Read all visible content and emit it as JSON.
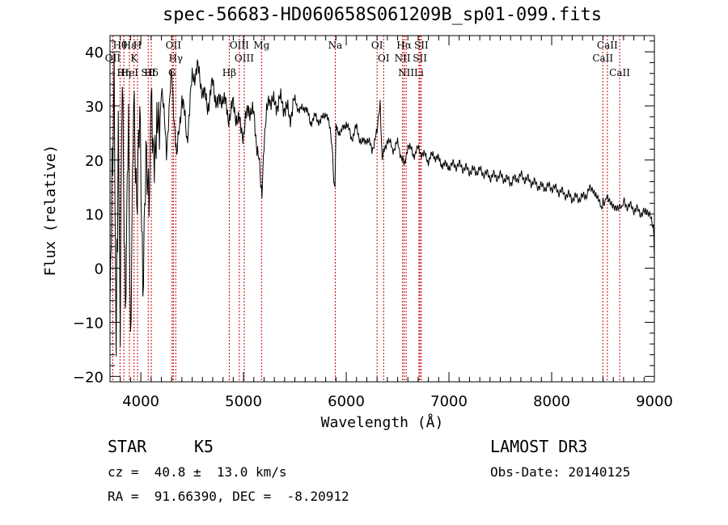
{
  "chart_data": {
    "type": "line",
    "title": "spec-56683-HD060658S061209B_sp01-099.fits",
    "xlabel": "Wavelength (Å)",
    "ylabel": "Flux (relative)",
    "xlim": [
      3700,
      9000
    ],
    "ylim": [
      -21,
      43
    ],
    "x_ticks": [
      "4000",
      "5000",
      "6000",
      "7000",
      "8000",
      "9000"
    ],
    "y_ticks": [
      "−20",
      "−10",
      "0",
      "10",
      "20",
      "30",
      "40"
    ],
    "x_tick_values": [
      4000,
      5000,
      6000,
      7000,
      8000,
      9000
    ],
    "y_tick_values": [
      -20,
      -10,
      0,
      10,
      20,
      30,
      40
    ],
    "series": [
      {
        "name": "flux",
        "x": [
          3700,
          3720,
          3740,
          3760,
          3780,
          3800,
          3820,
          3850,
          3880,
          3900,
          3930,
          3960,
          3990,
          4020,
          4050,
          4080,
          4100,
          4150,
          4200,
          4250,
          4300,
          4350,
          4400,
          4450,
          4500,
          4550,
          4600,
          4650,
          4700,
          4750,
          4800,
          4850,
          4900,
          4950,
          5000,
          5050,
          5100,
          5150,
          5180,
          5200,
          5250,
          5300,
          5350,
          5400,
          5450,
          5500,
          5550,
          5600,
          5650,
          5700,
          5750,
          5800,
          5850,
          5890,
          5900,
          5950,
          6000,
          6050,
          6100,
          6150,
          6200,
          6250,
          6300,
          6330,
          6350,
          6400,
          6450,
          6500,
          6550,
          6563,
          6600,
          6650,
          6700,
          6750,
          6800,
          6850,
          6900,
          6950,
          7000,
          7100,
          7200,
          7300,
          7400,
          7500,
          7600,
          7700,
          7800,
          7900,
          8000,
          8100,
          8200,
          8300,
          8400,
          8480,
          8500,
          8540,
          8600,
          8660,
          8700,
          8800,
          8900,
          8960,
          8990,
          9000
        ],
        "y": [
          -5,
          15,
          35,
          -15,
          25,
          -10,
          40,
          -5,
          30,
          -18,
          28,
          8,
          32,
          0,
          25,
          12,
          30,
          20,
          34,
          22,
          36,
          20,
          32,
          24,
          35,
          37,
          33,
          30,
          34,
          30,
          32,
          28,
          30,
          27,
          25,
          30,
          28,
          20,
          13,
          24,
          32,
          30,
          31,
          30,
          28,
          31,
          29,
          30,
          27,
          28,
          27,
          29,
          25,
          14,
          26,
          25,
          27,
          24,
          26,
          23,
          24,
          22,
          25,
          30,
          20,
          24,
          22,
          23,
          20,
          19,
          23,
          21,
          22,
          21,
          20,
          21,
          20,
          19,
          19,
          19,
          18,
          18,
          17,
          17,
          16,
          17,
          16,
          15,
          15,
          14,
          13,
          13,
          15,
          11,
          12,
          13,
          12,
          11,
          12,
          11,
          10,
          10,
          8,
          1
        ]
      }
    ],
    "line_markers": [
      {
        "label": "Hθ",
        "x": 3798
      },
      {
        "label": "OII",
        "x": 3727
      },
      {
        "label": "Hη",
        "x": 3835
      },
      {
        "label": "Hε",
        "x": 3889
      },
      {
        "label": "K",
        "x": 3934
      },
      {
        "label": "HeI",
        "x": 3889
      },
      {
        "label": "H",
        "x": 3968
      },
      {
        "label": "Hδ",
        "x": 4102
      },
      {
        "label": "SII",
        "x": 4072
      },
      {
        "label": "OII",
        "x": 4317
      },
      {
        "label": "Hγ",
        "x": 4340
      },
      {
        "label": "G",
        "x": 4305
      },
      {
        "label": "OIII",
        "x": 4959
      },
      {
        "label": "OIII",
        "x": 5007
      },
      {
        "label": "Hβ",
        "x": 4861
      },
      {
        "label": "Mg",
        "x": 5175
      },
      {
        "label": "Na",
        "x": 5893
      },
      {
        "label": "OI",
        "x": 6300
      },
      {
        "label": "OI",
        "x": 6364
      },
      {
        "label": "Hα",
        "x": 6563
      },
      {
        "label": "NII",
        "x": 6548
      },
      {
        "label": "NII",
        "x": 6583
      },
      {
        "label": "SII",
        "x": 6717
      },
      {
        "label": "Li",
        "x": 6708
      },
      {
        "label": "SII",
        "x": 6731
      },
      {
        "label": "CaII",
        "x": 8542
      },
      {
        "label": "CaII",
        "x": 8498
      },
      {
        "label": "CaII",
        "x": 8662
      }
    ]
  },
  "info": {
    "object_class": "STAR",
    "subclass": "K5",
    "survey": "LAMOST DR3",
    "redshift": "cz =  40.8 ±  13.0 km/s",
    "obs_date": "Obs-Date: 20140125",
    "coords": "RA =  91.66390, DEC =  -8.20912"
  },
  "colors": {
    "line_marker": "#cc0000",
    "spectrum": "#000000",
    "axis": "#000000"
  }
}
